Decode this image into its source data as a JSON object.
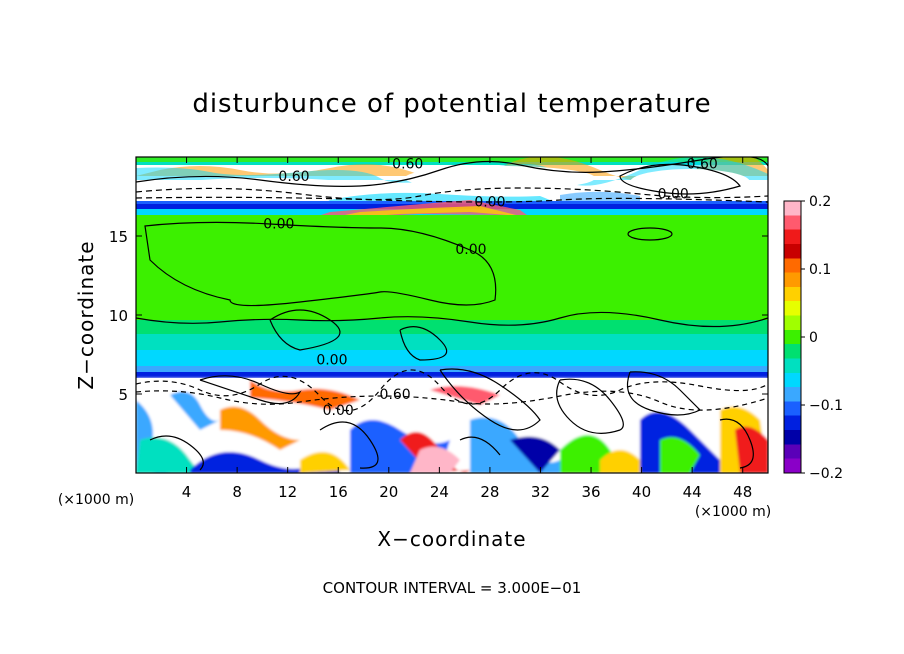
{
  "chart_data": {
    "type": "heatmap",
    "title": "disturbunce of potential temperature",
    "xlabel": "X−coordinate",
    "ylabel": "Z−coordinate",
    "x_unit": "(×1000 m)",
    "y_unit": "(×1000 m)",
    "xlim": [
      0,
      50
    ],
    "ylim": [
      0,
      20
    ],
    "x_ticks": [
      4,
      8,
      12,
      16,
      20,
      24,
      28,
      32,
      36,
      40,
      44,
      48
    ],
    "y_ticks": [
      5,
      10,
      15
    ],
    "colorbar": {
      "range": [
        -0.2,
        0.2
      ],
      "ticks": [
        0.2,
        0.1,
        0,
        -0.1,
        -0.2
      ],
      "tick_labels": [
        "0.2",
        "0.1",
        "0",
        "−0.1",
        "−0.2"
      ],
      "colors": [
        "#ffb6c8",
        "#ff5a6e",
        "#f01a1a",
        "#c80000",
        "#ff6a00",
        "#ff9a00",
        "#ffd000",
        "#e6ff00",
        "#a0ff00",
        "#3cf000",
        "#00e070",
        "#00e0c0",
        "#00d8ff",
        "#3aa8ff",
        "#1a60ff",
        "#0020e0",
        "#0000a8",
        "#5a00b8",
        "#8a00c8"
      ]
    },
    "contour_labels": [
      {
        "text": "0.60",
        "x": 21.5,
        "z": 19.4
      },
      {
        "text": "0.60",
        "x": 12.5,
        "z": 18.6
      },
      {
        "text": "0.60",
        "x": 44.8,
        "z": 19.4
      },
      {
        "text": "0.00",
        "x": 42.5,
        "z": 17.5
      },
      {
        "text": "0.00",
        "x": 11.3,
        "z": 15.6
      },
      {
        "text": "0.00",
        "x": 26.5,
        "z": 14.0
      },
      {
        "text": "0.00",
        "x": 15.5,
        "z": 7.0
      },
      {
        "text": "0.60",
        "x": 20.5,
        "z": 4.8
      },
      {
        "text": "0.00",
        "x": 16.0,
        "z": 3.8
      },
      {
        "text": "0.00",
        "x": 28.0,
        "z": 17.0
      }
    ],
    "annotation": "CONTOUR INTERVAL = 3.000E−01"
  }
}
